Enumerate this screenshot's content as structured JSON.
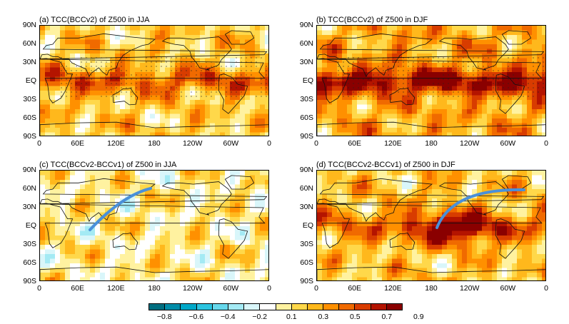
{
  "panels": [
    {
      "id": "a",
      "title": "(a) TCC(BCCv2) of Z500 in JJA",
      "intensity": 0.55,
      "anomaly": "tropical-band",
      "arrow": false
    },
    {
      "id": "b",
      "title": "(b) TCC(BCCv2) of Z500 in DJF",
      "intensity": 0.85,
      "anomaly": "tropical-band",
      "arrow": false
    },
    {
      "id": "c",
      "title": "(c) TCC(BCCv2-BCCv1) of Z500 in JJA",
      "intensity": 0.35,
      "anomaly": "mixed",
      "arrow": true
    },
    {
      "id": "d",
      "title": "(d) TCC(BCCv2-BCCv1) of Z500 in DJF",
      "intensity": 0.6,
      "anomaly": "central-pacific",
      "arrow": true
    }
  ],
  "lat_labels": [
    "90N",
    "60N",
    "30N",
    "EQ",
    "30S",
    "60S",
    "90S"
  ],
  "lon_labels": [
    "0",
    "60E",
    "120E",
    "180",
    "120W",
    "60W",
    "0"
  ],
  "colorbar": {
    "colors": [
      "#006e80",
      "#008ca8",
      "#00a8c8",
      "#2cc4e0",
      "#66d8ec",
      "#a4eaf4",
      "#d9f6fa",
      "#ffffff",
      "#fff2a0",
      "#ffd84a",
      "#ffb81c",
      "#ff9000",
      "#f06a00",
      "#d83c00",
      "#b41400",
      "#8a0000"
    ],
    "labels": [
      "−0.8",
      "−0.6",
      "−0.4",
      "−0.2",
      "0.1",
      "0.3",
      "0.5",
      "0.7",
      "0.9"
    ]
  },
  "arrow_color": "#4a90d9"
}
